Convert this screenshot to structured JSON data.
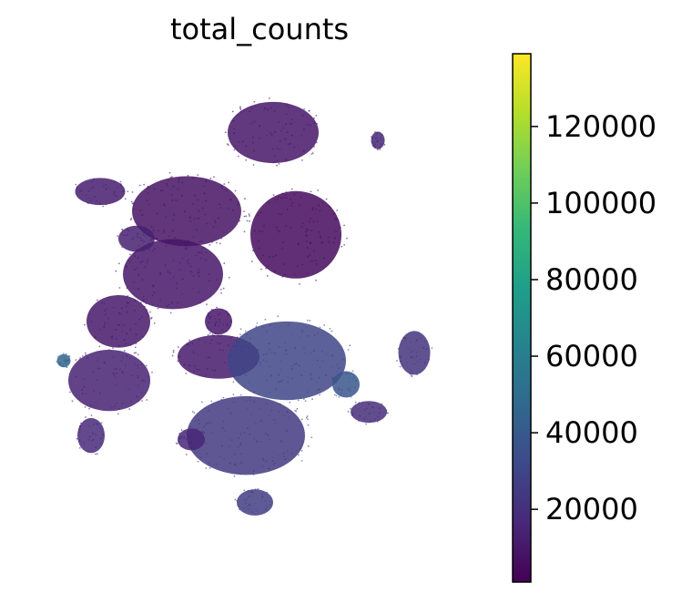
{
  "chart_data": {
    "type": "scatter",
    "title": "total_counts",
    "xlabel": "",
    "ylabel": "",
    "colormap": "viridis",
    "color_range": [
      1000,
      139000
    ],
    "colorbar": {
      "label": "",
      "ticks": [
        {
          "value": 20000,
          "label": "20000"
        },
        {
          "value": 40000,
          "label": "40000"
        },
        {
          "value": 60000,
          "label": "60000"
        },
        {
          "value": 80000,
          "label": "80000"
        },
        {
          "value": 100000,
          "label": "100000"
        },
        {
          "value": 120000,
          "label": "120000"
        }
      ],
      "stops": [
        "#440154",
        "#482878",
        "#3e4989",
        "#31688e",
        "#26828e",
        "#1f9e89",
        "#35b779",
        "#6ece58",
        "#b5de2b",
        "#fde725"
      ]
    },
    "clusters": [
      {
        "cx": 0.14,
        "cy": 0.29,
        "rx": 0.055,
        "ry": 0.031,
        "value": 12000
      },
      {
        "cx": 0.52,
        "cy": 0.14,
        "rx": 0.1,
        "ry": 0.07,
        "value": 9000
      },
      {
        "cx": 0.33,
        "cy": 0.34,
        "rx": 0.12,
        "ry": 0.08,
        "value": 8000
      },
      {
        "cx": 0.57,
        "cy": 0.4,
        "rx": 0.1,
        "ry": 0.1,
        "value": 5000
      },
      {
        "cx": 0.3,
        "cy": 0.5,
        "rx": 0.11,
        "ry": 0.08,
        "value": 9000
      },
      {
        "cx": 0.18,
        "cy": 0.62,
        "rx": 0.07,
        "ry": 0.06,
        "value": 10000
      },
      {
        "cx": 0.16,
        "cy": 0.77,
        "rx": 0.09,
        "ry": 0.07,
        "value": 14000
      },
      {
        "cx": 0.4,
        "cy": 0.71,
        "rx": 0.09,
        "ry": 0.05,
        "value": 11000
      },
      {
        "cx": 0.55,
        "cy": 0.72,
        "rx": 0.13,
        "ry": 0.09,
        "value": 30000
      },
      {
        "cx": 0.46,
        "cy": 0.91,
        "rx": 0.13,
        "ry": 0.09,
        "value": 24000
      },
      {
        "cx": 0.83,
        "cy": 0.7,
        "rx": 0.035,
        "ry": 0.05,
        "value": 22000
      },
      {
        "cx": 0.73,
        "cy": 0.85,
        "rx": 0.04,
        "ry": 0.025,
        "value": 19000
      },
      {
        "cx": 0.48,
        "cy": 1.08,
        "rx": 0.04,
        "ry": 0.03,
        "value": 26000
      },
      {
        "cx": 0.22,
        "cy": 0.41,
        "rx": 0.04,
        "ry": 0.03,
        "value": 13000
      },
      {
        "cx": 0.75,
        "cy": 0.16,
        "rx": 0.015,
        "ry": 0.02,
        "value": 16000
      },
      {
        "cx": 0.06,
        "cy": 0.72,
        "rx": 0.015,
        "ry": 0.015,
        "value": 45000
      },
      {
        "cx": 0.12,
        "cy": 0.91,
        "rx": 0.03,
        "ry": 0.04,
        "value": 17000
      },
      {
        "cx": 0.34,
        "cy": 0.92,
        "rx": 0.03,
        "ry": 0.025,
        "value": 16000
      },
      {
        "cx": 0.4,
        "cy": 0.62,
        "rx": 0.03,
        "ry": 0.03,
        "value": 9000
      },
      {
        "cx": 0.68,
        "cy": 0.78,
        "rx": 0.03,
        "ry": 0.03,
        "value": 38000
      }
    ]
  }
}
